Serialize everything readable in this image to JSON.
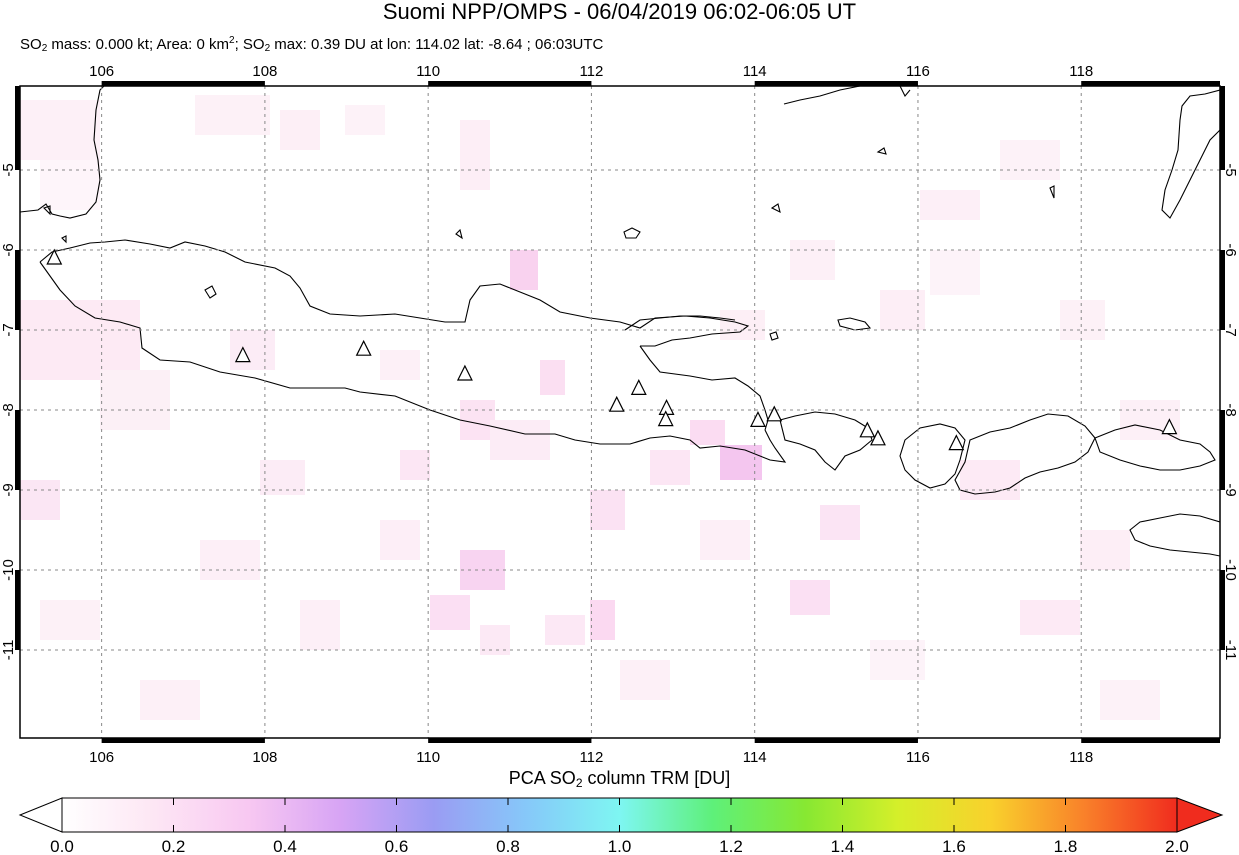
{
  "header": {
    "title": "Suomi NPP/OMPS - 06/04/2019 06:02-06:05 UT",
    "subtitle_so2_a": "SO",
    "subtitle_mass": " mass: 0.000 kt; Area: 0 km",
    "subtitle_area_sup": "2",
    "subtitle_sep": "; SO",
    "subtitle_max": " max: 0.39 DU at lon: 114.02 lat: -8.64 ; 06:03UTC",
    "subscript_2": "2"
  },
  "map": {
    "lon_range": [
      105,
      119.7
    ],
    "lat_range": [
      -12.1,
      -3.95
    ],
    "x_ticks": [
      "106",
      "108",
      "110",
      "112",
      "114",
      "116",
      "118"
    ],
    "x_tick_values": [
      106,
      108,
      110,
      112,
      114,
      116,
      118
    ],
    "y_ticks": [
      "-5",
      "-6",
      "-7",
      "-8",
      "-9",
      "-10",
      "-11"
    ],
    "y_tick_values": [
      -5,
      -6,
      -7,
      -8,
      -9,
      -10,
      -11
    ],
    "grid": true,
    "volcanoes": [
      {
        "lon": 105.42,
        "lat": -6.1
      },
      {
        "lon": 107.73,
        "lat": -7.32
      },
      {
        "lon": 109.21,
        "lat": -7.24
      },
      {
        "lon": 110.45,
        "lat": -7.55
      },
      {
        "lon": 112.31,
        "lat": -7.94
      },
      {
        "lon": 112.58,
        "lat": -7.73
      },
      {
        "lon": 112.92,
        "lat": -7.98
      },
      {
        "lon": 112.91,
        "lat": -8.12
      },
      {
        "lon": 114.04,
        "lat": -8.13
      },
      {
        "lon": 114.24,
        "lat": -8.06
      },
      {
        "lon": 115.38,
        "lat": -8.26
      },
      {
        "lon": 115.51,
        "lat": -8.36
      },
      {
        "lon": 116.47,
        "lat": -8.42
      },
      {
        "lon": 119.08,
        "lat": -8.22
      }
    ]
  },
  "colorbar": {
    "title_a": "PCA SO",
    "title_sub": "2",
    "title_b": " column TRM [DU]",
    "min": 0.0,
    "max": 2.0,
    "tick_labels": [
      "0.0",
      "0.2",
      "0.4",
      "0.6",
      "0.8",
      "1.0",
      "1.2",
      "1.4",
      "1.6",
      "1.8",
      "2.0"
    ],
    "colors": [
      "#ffffff",
      "#fde6f4",
      "#f8c8f2",
      "#d7a4f4",
      "#9a9cf3",
      "#86c8f9",
      "#7ef6f2",
      "#5ef07a",
      "#87e832",
      "#d5ef2a",
      "#f9d12c",
      "#f9812a",
      "#f02c1e"
    ]
  }
}
